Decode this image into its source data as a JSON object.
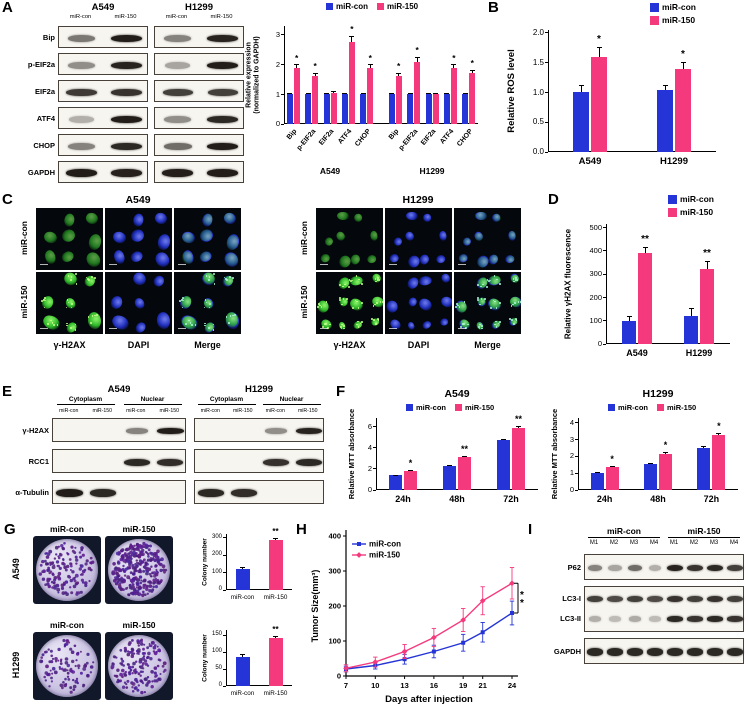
{
  "colors": {
    "con": "#2434d6",
    "mir150": "#f5397d",
    "band": "#17120d",
    "h2ax_green": "#39d232",
    "dapi_blue": "#2b3bd6",
    "colony_purple": "#55248c"
  },
  "panels": {
    "A": {
      "label": "A",
      "blot": {
        "group_titles": [
          "A549",
          "H1299"
        ],
        "lane_labels": [
          "miR-con",
          "miR-150",
          "miR-con",
          "miR-150"
        ],
        "rows": [
          {
            "label": "Bip",
            "lanes": [
              [
                0.55,
                0.95
              ],
              [
                0.5,
                0.92
              ]
            ]
          },
          {
            "label": "p-EIF2a",
            "lanes": [
              [
                0.45,
                0.92
              ],
              [
                0.35,
                0.95
              ]
            ]
          },
          {
            "label": "EIF2a",
            "lanes": [
              [
                0.82,
                0.85
              ],
              [
                0.8,
                0.8
              ]
            ]
          },
          {
            "label": "ATF4",
            "lanes": [
              [
                0.3,
                0.95
              ],
              [
                0.45,
                0.9
              ]
            ]
          },
          {
            "label": "CHOP",
            "lanes": [
              [
                0.5,
                0.9
              ],
              [
                0.6,
                0.95
              ]
            ]
          },
          {
            "label": "GAPDH",
            "lanes": [
              [
                0.95,
                0.93
              ],
              [
                0.94,
                0.95
              ]
            ]
          }
        ]
      },
      "chart": {
        "type": "bar",
        "ylabel": "Relative expression (normalized to GAPDH)",
        "ymax": 3.3,
        "yticks": [
          0,
          1,
          2,
          3
        ],
        "ytick_labels": [
          "0",
          "1",
          "2",
          "3"
        ],
        "categories": [
          "Bip",
          "p-EIF2a",
          "EIF2a",
          "ATF4",
          "CHOP",
          "Bip",
          "p-EIF2a",
          "EIF2a",
          "ATF4",
          "CHOP"
        ],
        "gap_after": 4,
        "group_labels": [
          {
            "label": "A549",
            "from": 0,
            "to": 4
          },
          {
            "label": "H1299",
            "from": 5,
            "to": 9
          }
        ],
        "series": [
          {
            "name": "miR-con",
            "color": "con",
            "values": [
              1,
              1,
              1,
              1,
              1,
              1,
              1,
              1,
              1,
              1
            ],
            "err": [
              0.05,
              0.05,
              0.05,
              0.05,
              0.05,
              0.05,
              0.05,
              0.05,
              0.05,
              0.05
            ],
            "sig": [
              "",
              "",
              "",
              "",
              "",
              "",
              "",
              "",
              "",
              ""
            ]
          },
          {
            "name": "miR-150",
            "color": "mir150",
            "values": [
              1.9,
              1.62,
              1.05,
              2.75,
              1.9,
              1.62,
              2.1,
              1.0,
              1.9,
              1.72
            ],
            "err": [
              0.12,
              0.1,
              0.06,
              0.22,
              0.12,
              0.1,
              0.16,
              0.05,
              0.12,
              0.1
            ],
            "sig": [
              "*",
              "*",
              "",
              "*",
              "*",
              "*",
              "*",
              "",
              "*",
              "*"
            ]
          }
        ]
      }
    },
    "B": {
      "label": "B",
      "chart": {
        "type": "bar",
        "ylabel": "Relative ROS level",
        "ymax": 2.05,
        "yticks": [
          0,
          0.5,
          1.0,
          1.5,
          2.0
        ],
        "ytick_labels": [
          "0.0",
          "0.5",
          "1.0",
          "1.5",
          "2.0"
        ],
        "categories": [
          "A549",
          "H1299"
        ],
        "series": [
          {
            "name": "miR-con",
            "color": "con",
            "values": [
              1.0,
              1.05
            ],
            "err": [
              0.13,
              0.08
            ],
            "sig": [
              "",
              ""
            ]
          },
          {
            "name": "miR-150",
            "color": "mir150",
            "values": [
              1.6,
              1.4
            ],
            "err": [
              0.17,
              0.12
            ],
            "sig": [
              "*",
              "*"
            ]
          }
        ]
      }
    },
    "C": {
      "label": "C",
      "groups": [
        {
          "title": "A549",
          "row_labels": [
            "miR-con",
            "miR-150"
          ],
          "col_labels": [
            "γ-H2AX",
            "DAPI",
            "Merge"
          ]
        },
        {
          "title": "H1299",
          "row_labels": [
            "miR-con",
            "miR-150"
          ],
          "col_labels": [
            "γ-H2AX",
            "DAPI",
            "Merge"
          ]
        }
      ]
    },
    "D": {
      "label": "D",
      "chart": {
        "type": "bar",
        "ylabel": "Relative γH2AX fluorescence",
        "ymax": 515,
        "yticks": [
          0,
          100,
          200,
          300,
          400,
          500
        ],
        "ytick_labels": [
          "0",
          "100",
          "200",
          "300",
          "400",
          "500"
        ],
        "categories": [
          "A549",
          "H1299"
        ],
        "series": [
          {
            "name": "miR-con",
            "color": "con",
            "values": [
              100,
              120
            ],
            "err": [
              20,
              35
            ],
            "sig": [
              "",
              ""
            ]
          },
          {
            "name": "miR-150",
            "color": "mir150",
            "values": [
              390,
              320
            ],
            "err": [
              28,
              35
            ],
            "sig": [
              "**",
              "**"
            ]
          }
        ]
      }
    },
    "E": {
      "label": "E",
      "group_titles": [
        "A549",
        "H1299"
      ],
      "fraction_labels": [
        "Cytoplasm",
        "Nuclear",
        "Cytoplasm",
        "Nuclear"
      ],
      "lane_labels": [
        "miR-con",
        "miR-150",
        "miR-con",
        "miR-150",
        "miR-con",
        "miR-150",
        "miR-con",
        "miR-150"
      ],
      "rows": [
        {
          "label": "γ-H2AX",
          "lanes": [
            [
              0,
              0,
              0.5,
              0.95
            ],
            [
              0,
              0,
              0.45,
              0.92
            ]
          ]
        },
        {
          "label": "RCC1",
          "lanes": [
            [
              0,
              0,
              0.9,
              0.88
            ],
            [
              0,
              0,
              0.86,
              0.9
            ]
          ]
        },
        {
          "label": "α-Tubulin",
          "lanes": [
            [
              0.95,
              0.9,
              0,
              0
            ],
            [
              0.9,
              0.88,
              0,
              0
            ]
          ]
        }
      ]
    },
    "F": {
      "label": "F",
      "charts": [
        {
          "type": "bar",
          "title": "A549",
          "ylabel": "Relative MTT absorbance",
          "ymax": 6.8,
          "yticks": [
            0,
            2,
            4,
            6
          ],
          "ytick_labels": [
            "0",
            "2",
            "4",
            "6"
          ],
          "categories": [
            "24h",
            "48h",
            "72h"
          ],
          "series": [
            {
              "name": "miR-con",
              "color": "con",
              "values": [
                1.4,
                2.3,
                4.7
              ],
              "err": [
                0.06,
                0.08,
                0.1
              ],
              "sig": [
                "",
                "",
                ""
              ]
            },
            {
              "name": "miR-150",
              "color": "mir150",
              "values": [
                1.75,
                3.1,
                5.9
              ],
              "err": [
                0.1,
                0.1,
                0.15
              ],
              "sig": [
                "*",
                "**",
                "**"
              ]
            }
          ]
        },
        {
          "type": "bar",
          "title": "H1299",
          "ylabel": "Relative MTT absorbance",
          "ymax": 4.25,
          "yticks": [
            0,
            1,
            2,
            3,
            4
          ],
          "ytick_labels": [
            "0",
            "1",
            "2",
            "3",
            "4"
          ],
          "categories": [
            "24h",
            "48h",
            "72h"
          ],
          "series": [
            {
              "name": "miR-con",
              "color": "con",
              "values": [
                1.0,
                1.55,
                2.5
              ],
              "err": [
                0.05,
                0.06,
                0.1
              ],
              "sig": [
                "",
                "",
                ""
              ]
            },
            {
              "name": "miR-150",
              "color": "mir150",
              "values": [
                1.35,
                2.15,
                3.25
              ],
              "err": [
                0.06,
                0.1,
                0.12
              ],
              "sig": [
                "*",
                "*",
                "*"
              ]
            }
          ]
        }
      ]
    },
    "G": {
      "label": "G",
      "col_headers": [
        "miR-con",
        "miR-150"
      ],
      "rows": [
        {
          "cell_line": "A549",
          "densities": [
            140,
            330
          ]
        },
        {
          "cell_line": "H1299",
          "densities": [
            95,
            165
          ]
        }
      ],
      "charts": [
        {
          "type": "bar",
          "ylabel": "Colony number",
          "ymax": 320,
          "yticks": [
            0,
            100,
            200,
            300
          ],
          "ytick_labels": [
            "0",
            "100",
            "200",
            "300"
          ],
          "categories": [
            "miR-con",
            "miR-150"
          ],
          "series": [
            {
              "name": "",
              "color": "con",
              "colorKeys": [
                "con",
                "mir150"
              ],
              "values": [
                120,
                285
              ],
              "err": [
                12,
                14
              ],
              "sig": [
                "",
                "**"
              ]
            }
          ]
        },
        {
          "type": "bar",
          "ylabel": "Colony number",
          "ymax": 165,
          "yticks": [
            0,
            50,
            100,
            150
          ],
          "ytick_labels": [
            "0",
            "50",
            "100",
            "150"
          ],
          "categories": [
            "miR-con",
            "miR-150"
          ],
          "series": [
            {
              "name": "",
              "color": "con",
              "colorKeys": [
                "con",
                "mir150"
              ],
              "values": [
                85,
                140
              ],
              "err": [
                10,
                8
              ],
              "sig": [
                "",
                "**"
              ]
            }
          ]
        }
      ]
    },
    "H": {
      "label": "H",
      "chart": {
        "type": "line",
        "ylabel": "Tumor Size(mm³)",
        "xlabel": "Days after injection",
        "ymax": 400,
        "yticks": [
          0,
          100,
          200,
          300,
          400
        ],
        "x": [
          7,
          10,
          13,
          16,
          19,
          21,
          24
        ],
        "series": [
          {
            "name": "miR-con",
            "color": "con",
            "values": [
              20,
              30,
              48,
              70,
              95,
              125,
              180
            ],
            "err": [
              8,
              10,
              14,
              18,
              24,
              28,
              34
            ]
          },
          {
            "name": "miR-150",
            "color": "mir150",
            "values": [
              22,
              40,
              70,
              110,
              160,
              215,
              265
            ],
            "err": [
              10,
              14,
              20,
              26,
              33,
              40,
              45
            ]
          }
        ],
        "sig": "**"
      }
    },
    "I": {
      "label": "I",
      "group_titles": [
        "miR-con",
        "miR-150"
      ],
      "lane_labels": [
        "M1",
        "M2",
        "M3",
        "M4",
        "M1",
        "M2",
        "M3",
        "M4"
      ],
      "rows": [
        {
          "label": "P62",
          "lanes": [
            0.5,
            0.35,
            0.6,
            0.3,
            0.92,
            0.85,
            0.9,
            0.8
          ]
        },
        {
          "label": "LC3-I",
          "lanes": [
            0.8,
            0.75,
            0.8,
            0.75,
            0.85,
            0.8,
            0.85,
            0.8
          ]
        },
        {
          "label": "LC3-II",
          "lanes": [
            0.3,
            0.25,
            0.32,
            0.25,
            0.9,
            0.85,
            0.9,
            0.85
          ]
        },
        {
          "label": "GAPDH",
          "lanes": [
            0.9,
            0.9,
            0.9,
            0.9,
            0.9,
            0.9,
            0.9,
            0.9
          ]
        }
      ]
    }
  }
}
